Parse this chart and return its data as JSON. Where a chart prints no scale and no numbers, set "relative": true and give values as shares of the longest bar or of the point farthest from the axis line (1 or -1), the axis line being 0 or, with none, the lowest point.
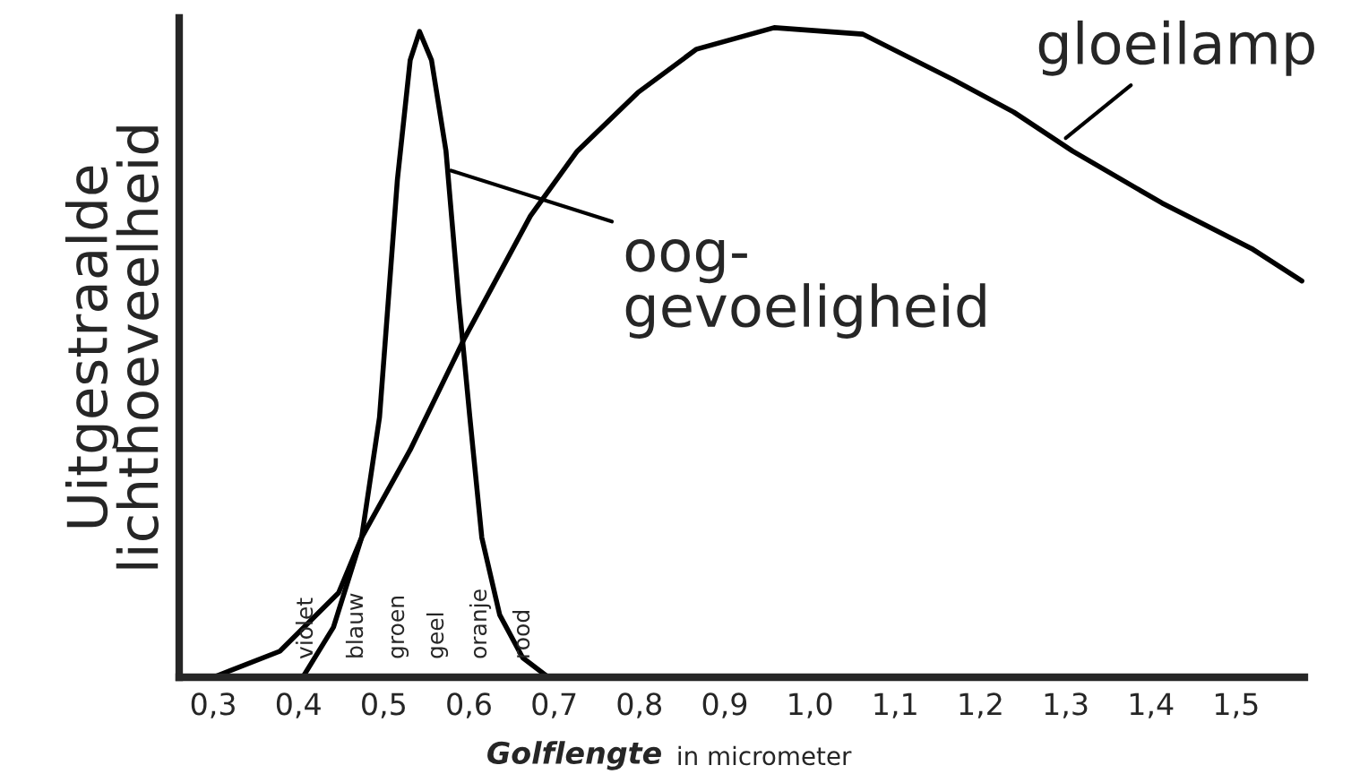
{
  "chart_data": {
    "type": "line",
    "relative": true,
    "xlabel": "Golflengte in micrometer",
    "ylabel": "Uitgestraalde\nlichthoeveelheid",
    "xlim": [
      0.26,
      1.58
    ],
    "xticks": [
      {
        "value": 0.3,
        "label": "0,3"
      },
      {
        "value": 0.4,
        "label": "0,4"
      },
      {
        "value": 0.5,
        "label": "0,5"
      },
      {
        "value": 0.6,
        "label": "0,6"
      },
      {
        "value": 0.7,
        "label": "0,7"
      },
      {
        "value": 0.8,
        "label": "0,8"
      },
      {
        "value": 0.9,
        "label": "0,9"
      },
      {
        "value": 1.0,
        "label": "1,0"
      },
      {
        "value": 1.1,
        "label": "1,1"
      },
      {
        "value": 1.2,
        "label": "1,2"
      },
      {
        "value": 1.3,
        "label": "1,3"
      },
      {
        "value": 1.4,
        "label": "1,4"
      },
      {
        "value": 1.5,
        "label": "1,5"
      }
    ],
    "series": [
      {
        "color": "#000000",
        "x": [
          0.3,
          0.378,
          0.447,
          0.474,
          0.531,
          0.594,
          0.672,
          0.727,
          0.798,
          0.867,
          0.958,
          1.062,
          1.168,
          1.239,
          1.308,
          1.413,
          1.518,
          1.577
        ],
        "values": [
          0.0,
          0.04,
          0.13,
          0.215,
          0.35,
          0.52,
          0.71,
          0.81,
          0.9,
          0.967,
          1.0,
          0.99,
          0.92,
          0.87,
          0.81,
          0.73,
          0.66,
          0.61
        ]
      },
      {
        "color": "#000000",
        "x": [
          0.405,
          0.441,
          0.474,
          0.495,
          0.516,
          0.531,
          0.542,
          0.556,
          0.573,
          0.588,
          0.601,
          0.615,
          0.636,
          0.663,
          0.693
        ],
        "values": [
          0.0,
          0.077,
          0.215,
          0.4,
          0.766,
          0.95,
          0.994,
          0.95,
          0.81,
          0.58,
          0.4,
          0.215,
          0.096,
          0.03,
          0.0
        ]
      }
    ],
    "annotations": [
      {
        "text": "gloeilamp",
        "x": 1.3,
        "y": 0.83
      },
      {
        "text": "oog-\ngevoeligheid",
        "x": 0.579,
        "y": 0.78
      },
      "violet",
      "blauw",
      "groen",
      "geel",
      "oranje",
      "rood"
    ],
    "grid": false,
    "marker": "none",
    "line_style": "solid"
  }
}
